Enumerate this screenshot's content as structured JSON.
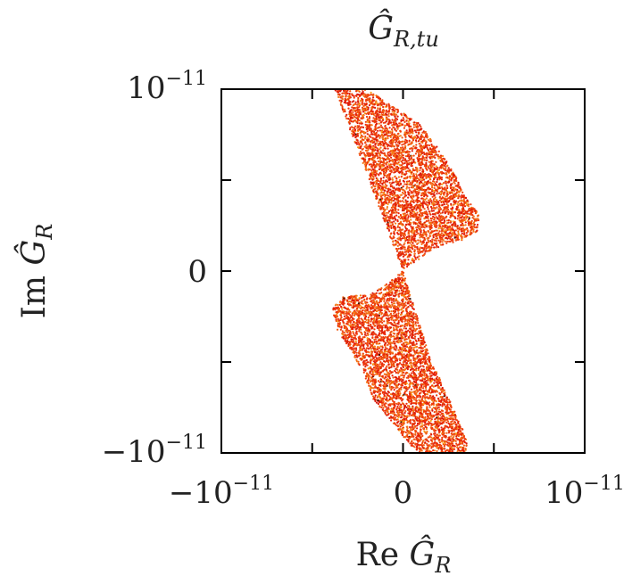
{
  "chart_data": {
    "type": "scatter",
    "title": {
      "prefix": "",
      "symbol": "Ĝ",
      "subscript": "R,tu"
    },
    "xlabel": {
      "prefix": "Re ",
      "symbol": "Ĝ",
      "subscript": "R"
    },
    "ylabel": {
      "prefix": "Im ",
      "symbol": "Ĝ",
      "subscript": "R"
    },
    "xlim": [
      -1e-11,
      1e-11
    ],
    "ylim": [
      -1e-11,
      1e-11
    ],
    "x_ticks": [
      {
        "value": -1e-11,
        "base": "−10",
        "exp": "−11"
      },
      {
        "value": 0,
        "base": "0",
        "exp": ""
      },
      {
        "value": 1e-11,
        "base": "10",
        "exp": "−11"
      }
    ],
    "y_ticks": [
      {
        "value": 1e-11,
        "base": "10",
        "exp": "−11"
      },
      {
        "value": 0,
        "base": "0",
        "exp": ""
      },
      {
        "value": -1e-11,
        "base": "−10",
        "exp": "−11"
      }
    ],
    "minor_ticks": [
      -5e-12,
      5e-12
    ],
    "grid": false,
    "legend": "none",
    "point_colors": [
      "#e8230a",
      "#ef3a0c",
      "#f25c12",
      "#f47a18",
      "#ee4410",
      "#d8180a",
      "#f9a21e",
      "#3a1208"
    ],
    "upper_lobe": {
      "outline": [
        [
          -3.75e-12,
          1e-11
        ],
        [
          -3.25e-12,
          1e-11
        ],
        [
          -2e-12,
          1e-11
        ],
        [
          9e-13,
          8.1e-12
        ],
        [
          2.05e-12,
          6.6e-12
        ],
        [
          2.9e-12,
          5.2e-12
        ],
        [
          3.35e-12,
          4.2e-12
        ],
        [
          4.2e-12,
          3.1e-12
        ],
        [
          4.1e-12,
          2.2e-12
        ],
        [
          3.25e-12,
          1.7e-12
        ],
        [
          1.6e-12,
          1.2e-12
        ],
        [
          0,
          0
        ]
      ],
      "point_count": 4200
    },
    "lower_lobe": {
      "outline": [
        [
          0,
          0
        ],
        [
          -1.6e-12,
          -1.2e-12
        ],
        [
          -3.4e-12,
          -1.45e-12
        ],
        [
          -3.9e-12,
          -2.1e-12
        ],
        [
          -3.6e-12,
          -3.3e-12
        ],
        [
          -2.2e-12,
          -5.5e-12
        ],
        [
          -1.7e-12,
          -7e-12
        ],
        [
          -6e-13,
          -8.3e-12
        ],
        [
          5e-13,
          -9.7e-12
        ],
        [
          1e-12,
          -1e-11
        ],
        [
          3.5e-12,
          -1e-11
        ],
        [
          3.5e-12,
          -9.2e-12
        ],
        [
          2.7e-12,
          -7.4e-12
        ],
        [
          1.5e-12,
          -4.8e-12
        ],
        [
          0,
          0
        ]
      ],
      "point_count": 4200
    }
  }
}
